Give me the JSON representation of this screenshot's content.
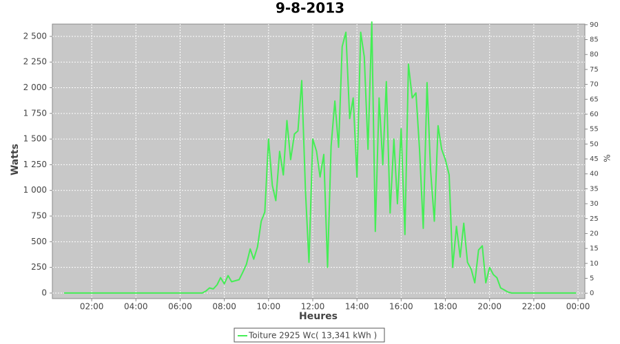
{
  "chart_data": {
    "type": "line",
    "title": "9-8-2013",
    "x_label": "Heures",
    "y_label": "Watts",
    "y2_label": "%",
    "x": [
      0.75,
      7,
      7.17,
      7.33,
      7.5,
      7.67,
      7.83,
      8,
      8.17,
      8.33,
      8.5,
      8.67,
      8.83,
      9,
      9.17,
      9.33,
      9.5,
      9.67,
      9.83,
      10,
      10.17,
      10.33,
      10.5,
      10.67,
      10.83,
      11,
      11.17,
      11.33,
      11.5,
      11.67,
      11.83,
      12,
      12.17,
      12.33,
      12.5,
      12.67,
      12.83,
      13,
      13.17,
      13.33,
      13.5,
      13.67,
      13.83,
      14,
      14.17,
      14.33,
      14.5,
      14.67,
      14.83,
      15,
      15.17,
      15.33,
      15.5,
      15.67,
      15.83,
      16,
      16.17,
      16.33,
      16.5,
      16.67,
      16.83,
      17,
      17.17,
      17.33,
      17.5,
      17.67,
      17.83,
      18,
      18.17,
      18.33,
      18.5,
      18.67,
      18.83,
      19,
      19.17,
      19.33,
      19.5,
      19.67,
      19.83,
      20,
      20.17,
      20.33,
      20.5,
      20.67,
      20.83,
      21,
      23.92
    ],
    "series": [
      {
        "name": "Toiture 2925 Wc( 13,341 kWh )",
        "color": "#44ee55",
        "values": [
          0,
          0,
          20,
          50,
          40,
          80,
          150,
          90,
          170,
          110,
          120,
          130,
          200,
          280,
          430,
          330,
          450,
          700,
          790,
          1500,
          1050,
          900,
          1380,
          1150,
          1680,
          1300,
          1550,
          1580,
          2070,
          1000,
          300,
          1500,
          1380,
          1130,
          1350,
          250,
          1430,
          1870,
          1420,
          2400,
          2540,
          1700,
          1900,
          1130,
          2540,
          2300,
          1400,
          2640,
          600,
          1900,
          1250,
          2060,
          780,
          1500,
          870,
          1600,
          570,
          2230,
          1900,
          1950,
          1400,
          630,
          2050,
          1200,
          700,
          1630,
          1400,
          1300,
          1150,
          250,
          650,
          350,
          680,
          300,
          230,
          100,
          420,
          460,
          100,
          250,
          180,
          150,
          50,
          30,
          10,
          0,
          0
        ]
      }
    ],
    "xlim": [
      0.22,
      24.31
    ],
    "xticks": [
      {
        "value": 2,
        "label": "02:00"
      },
      {
        "value": 4,
        "label": "04:00"
      },
      {
        "value": 6,
        "label": "06:00"
      },
      {
        "value": 8,
        "label": "08:00"
      },
      {
        "value": 10,
        "label": "10:00"
      },
      {
        "value": 12,
        "label": "12:00"
      },
      {
        "value": 14,
        "label": "14:00"
      },
      {
        "value": 16,
        "label": "16:00"
      },
      {
        "value": 18,
        "label": "18:00"
      },
      {
        "value": 20,
        "label": "20:00"
      },
      {
        "value": 22,
        "label": "22:00"
      },
      {
        "value": 24,
        "label": "00:00"
      }
    ],
    "ylim": [
      -54,
      2620
    ],
    "yticks": [
      0,
      250,
      500,
      750,
      {
        "value": 1000,
        "label": "1 000"
      },
      {
        "value": 1250,
        "label": "1 250"
      },
      {
        "value": 1500,
        "label": "1 500"
      },
      {
        "value": 1750,
        "label": "1 750"
      },
      {
        "value": 2000,
        "label": "2 000"
      },
      {
        "value": 2250,
        "label": "2 250"
      },
      {
        "value": 2500,
        "label": "2 500"
      }
    ],
    "y2lim": [
      -1.8,
      90.2
    ],
    "y2ticks": [
      0,
      5,
      10,
      15,
      20,
      25,
      30,
      35,
      40,
      45,
      50,
      55,
      60,
      65,
      70,
      75,
      80,
      85,
      90
    ],
    "grid": true
  }
}
